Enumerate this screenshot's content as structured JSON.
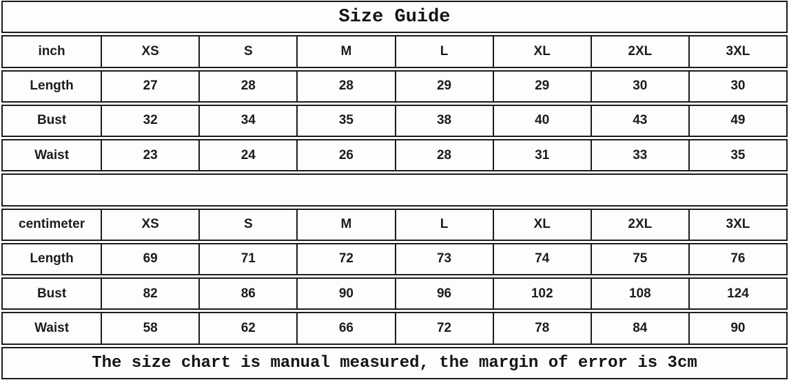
{
  "chart_data": {
    "type": "table",
    "title": "Size Guide",
    "note": "The size chart is manual measured, the margin of error is 3cm",
    "sizes": [
      "XS",
      "S",
      "M",
      "L",
      "XL",
      "2XL",
      "3XL"
    ],
    "sections": [
      {
        "unit": "inch",
        "rows": [
          {
            "label": "Length",
            "values": [
              27,
              28,
              28,
              29,
              29,
              30,
              30
            ]
          },
          {
            "label": "Bust",
            "values": [
              32,
              34,
              35,
              38,
              40,
              43,
              49
            ]
          },
          {
            "label": "Waist",
            "values": [
              23,
              24,
              26,
              28,
              31,
              33,
              35
            ]
          }
        ]
      },
      {
        "unit": "centimeter",
        "rows": [
          {
            "label": "Length",
            "values": [
              69,
              71,
              72,
              73,
              74,
              75,
              76
            ]
          },
          {
            "label": "Bust",
            "values": [
              82,
              86,
              90,
              96,
              102,
              108,
              124
            ]
          },
          {
            "label": "Waist",
            "values": [
              58,
              62,
              66,
              72,
              78,
              84,
              90
            ]
          }
        ]
      }
    ],
    "layout": {
      "columns": 8,
      "grid": "double horizontal rules between rows, single vertical rules within rows"
    }
  },
  "colors": {
    "background": "#fcfcfc",
    "row_fill": "#fdfdfd",
    "border": "#1b1b1b",
    "text": "#1c1c1c"
  }
}
